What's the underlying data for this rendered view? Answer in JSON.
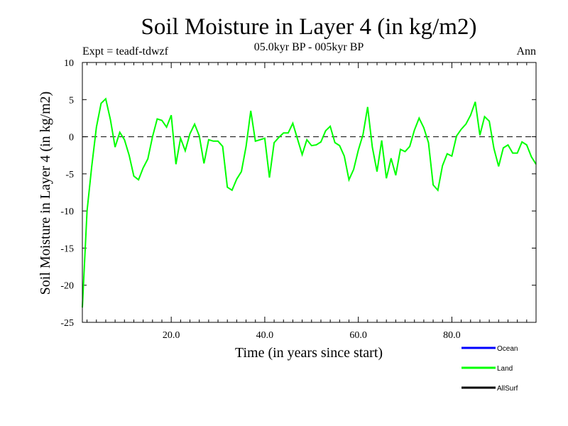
{
  "chart_data": {
    "type": "line",
    "title": "Soil Moisture in Layer 4 (in kg/m2)",
    "subtitle": "05.0kyr BP - 005kyr BP",
    "experiment": "Expt = teadf-tdwzf",
    "season": "Ann",
    "xlabel": "Time (in years since start)",
    "ylabel": "Soil Moisture in Layer 4 (in kg/m2)",
    "xlim": [
      1,
      98
    ],
    "ylim": [
      -25,
      10
    ],
    "x_ticks": [
      20,
      40,
      60,
      80
    ],
    "x_tick_labels": [
      "20.0",
      "40.0",
      "60.0",
      "80.0"
    ],
    "y_ticks": [
      -25,
      -20,
      -15,
      -10,
      -5,
      0,
      5,
      10
    ],
    "y_tick_labels": [
      "-25",
      "-20",
      "-15",
      "-10",
      "-5",
      "0",
      "5",
      "10"
    ],
    "zero_line": true,
    "legend": [
      {
        "name": "Ocean",
        "color": "#0000ff"
      },
      {
        "name": "Land",
        "color": "#00ff00"
      },
      {
        "name": "AllSurf",
        "color": "#000000"
      }
    ],
    "series": [
      {
        "name": "Land",
        "color": "#00ff00",
        "x": [
          1,
          2,
          3,
          4,
          5,
          6,
          7,
          8,
          9,
          10,
          11,
          12,
          13,
          14,
          15,
          16,
          17,
          18,
          19,
          20,
          21,
          22,
          23,
          24,
          25,
          26,
          27,
          28,
          29,
          30,
          31,
          32,
          33,
          34,
          35,
          36,
          37,
          38,
          39,
          40,
          41,
          42,
          43,
          44,
          45,
          46,
          47,
          48,
          49,
          50,
          51,
          52,
          53,
          54,
          55,
          56,
          57,
          58,
          59,
          60,
          61,
          62,
          63,
          64,
          65,
          66,
          67,
          68,
          69,
          70,
          71,
          72,
          73,
          74,
          75,
          76,
          77,
          78,
          79,
          80,
          81,
          82,
          83,
          84,
          85,
          86,
          87,
          88,
          89,
          90,
          91,
          92,
          93,
          94,
          95,
          96,
          97,
          98
        ],
        "values": [
          -23,
          -10,
          -4,
          1.3,
          4.5,
          5.1,
          2.3,
          -1.4,
          0.6,
          -0.4,
          -2.5,
          -5.3,
          -5.8,
          -4.2,
          -3,
          0,
          2.4,
          2.2,
          1.3,
          2.9,
          -3.7,
          -0.2,
          -1.9,
          0.4,
          1.7,
          0.1,
          -3.6,
          -0.4,
          -0.6,
          -0.6,
          -1.3,
          -6.8,
          -7.2,
          -5.7,
          -4.7,
          -1.3,
          3.5,
          -0.6,
          -0.4,
          -0.2,
          -5.5,
          -0.8,
          -0.1,
          0.5,
          0.5,
          1.8,
          -0.3,
          -2.4,
          -0.4,
          -1.2,
          -1.1,
          -0.7,
          0.8,
          1.4,
          -0.8,
          -1.2,
          -2.6,
          -5.8,
          -4.4,
          -1.8,
          0.3,
          4,
          -1.4,
          -4.7,
          -0.5,
          -5.6,
          -2.9,
          -5.2,
          -1.7,
          -2,
          -1.3,
          0.9,
          2.5,
          1.2,
          -0.8,
          -6.5,
          -7.2,
          -3.9,
          -2.3,
          -2.6,
          0.1,
          1,
          1.7,
          2.9,
          4.7,
          0.2,
          2.7,
          2.1,
          -1.6,
          -4,
          -1.5,
          -1.1,
          -2.2,
          -2.2,
          -0.7,
          -1.1,
          -2.7,
          -3.7
        ]
      }
    ]
  }
}
